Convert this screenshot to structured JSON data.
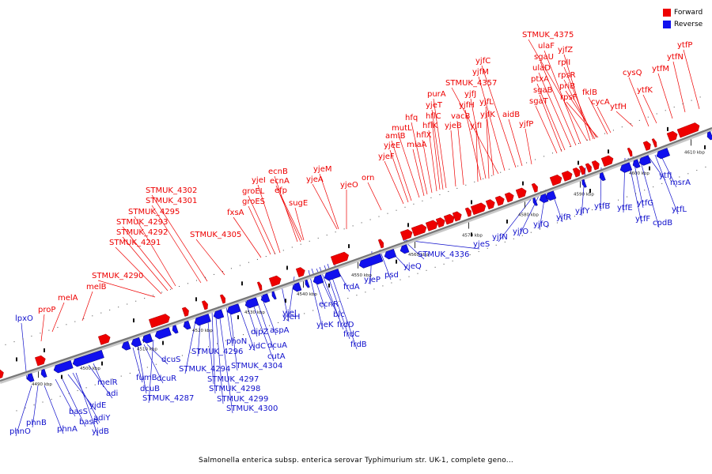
{
  "legend": {
    "forward": {
      "label": "Forward",
      "color": "#ee0000"
    },
    "reverse": {
      "label": "Reverse",
      "color": "#1010ee"
    }
  },
  "caption": "Salmonella enterica subsp. enterica serovar Typhimurium str. UK-1, complete geno...",
  "axis_ticks": [
    "4490 kbp",
    "4500 kbp",
    "4510 kbp",
    "4520 kbp",
    "4530 kbp",
    "4540 kbp",
    "4550 kbp",
    "4560 kbp",
    "4570 kbp",
    "4580 kbp",
    "4590 kbp",
    "4600 kbp",
    "4610 kbp"
  ],
  "forward_labels": [
    "proP",
    "melA",
    "melB",
    "STMUK_4290",
    "STMUK_4291",
    "STMUK_4292",
    "STMUK_4293",
    "STMUK_4295",
    "STMUK_4301",
    "STMUK_4302",
    "STMUK_4305",
    "fxsA",
    "groES",
    "groEL",
    "yjeI",
    "ecnB",
    "ecnA",
    "efp",
    "sugE",
    "yjeA",
    "yjeM",
    "yjeO",
    "orn",
    "yjeF",
    "yjeE",
    "amiB",
    "mutL",
    "miaA",
    "hfq",
    "hflX",
    "hflK",
    "hflC",
    "yjeT",
    "purA",
    "yjeB",
    "vacB",
    "yjfI",
    "yjfH",
    "yjfJ",
    "yjfK",
    "yjfL",
    "STMUK_4357",
    "yjfM",
    "yjfC",
    "aidB",
    "yjfP",
    "sgaT",
    "sgaB",
    "ptxA",
    "ulaD",
    "sgaU",
    "ulaF",
    "STMUK_4375",
    "yjfZ",
    "rplI",
    "rpsR",
    "priB",
    "rpsF",
    "fklB",
    "cycA",
    "ytfH",
    "cysQ",
    "ytfK",
    "ytfM",
    "ytfN",
    "ytfP"
  ],
  "reverse_labels": [
    "lpxO",
    "phnO",
    "phnB",
    "phnA",
    "basS",
    "basR",
    "yjdE",
    "adiY",
    "yjdB",
    "adi",
    "melR",
    "fumB",
    "dcuB",
    "dcuR",
    "dcuS",
    "STMUK_4287",
    "STMUK_4294",
    "STMUK_4296",
    "STMUK_4297",
    "STMUK_4298",
    "STMUK_4299",
    "STMUK_4300",
    "phoN",
    "STMUK_4304",
    "yjdC",
    "dipZ",
    "cutA",
    "dcuA",
    "aspA",
    "yjeH",
    "yjeJ",
    "yjeK",
    "ecnR",
    "blc",
    "frdD",
    "frdC",
    "frdB",
    "frdA",
    "yjeP",
    "psd",
    "yjeQ",
    "STMUK_4336",
    "yjeS",
    "yjfN",
    "yjfO",
    "yjfQ",
    "yjfR",
    "yjfY",
    "ytfB",
    "ytfE",
    "ytfF",
    "ytfG",
    "cpdB",
    "ytfJ",
    "ytfL",
    "msrA"
  ]
}
